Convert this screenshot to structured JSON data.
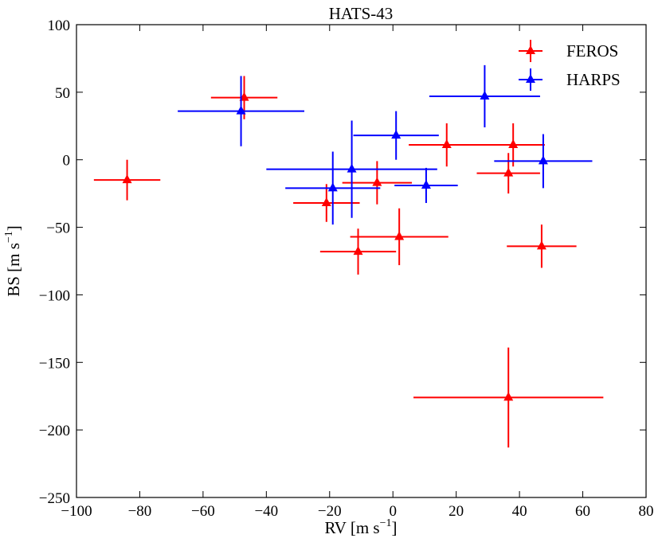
{
  "chart_data": {
    "type": "scatter",
    "title": "HATS-43",
    "xlabel_main": "RV [m s",
    "xlabel_sup": "−1",
    "xlabel_close": "]",
    "ylabel_main": "BS [m s",
    "ylabel_sup": "−1",
    "ylabel_close": "]",
    "xlim": [
      -100,
      80
    ],
    "ylim": [
      -250,
      100
    ],
    "xticks": [
      -100,
      -80,
      -60,
      -40,
      -20,
      0,
      20,
      40,
      60,
      80
    ],
    "yticks": [
      -250,
      -200,
      -150,
      -100,
      -50,
      0,
      50,
      100
    ],
    "xtick_labels": [
      "−100",
      "−80",
      "−60",
      "−40",
      "−20",
      "0",
      "20",
      "40",
      "60",
      "80"
    ],
    "ytick_labels": [
      "−250",
      "−200",
      "−150",
      "−100",
      "−50",
      "0",
      "50",
      "100"
    ],
    "legend_position": "top-right",
    "series": [
      {
        "name": "FEROS",
        "color": "#ff0000",
        "points": [
          {
            "x": -84,
            "y": -15,
            "xerr": 10.5,
            "yerr": 15
          },
          {
            "x": -47,
            "y": 46,
            "xerr": 10.5,
            "yerr": 16
          },
          {
            "x": -21,
            "y": -32,
            "xerr": 10.5,
            "yerr": 14
          },
          {
            "x": -11,
            "y": -68,
            "xerr": 12,
            "yerr": 17
          },
          {
            "x": -5,
            "y": -17,
            "xerr": 11,
            "yerr": 16
          },
          {
            "x": 2,
            "y": -57,
            "xerr": 15.5,
            "yerr": 21
          },
          {
            "x": 17,
            "y": 11,
            "xerr": 12,
            "yerr": 16
          },
          {
            "x": 36.5,
            "y": -10,
            "xerr": 10,
            "yerr": 15
          },
          {
            "x": 38,
            "y": 11,
            "xerr": 10,
            "yerr": 16
          },
          {
            "x": 47,
            "y": -64,
            "xerr": 11,
            "yerr": 16
          },
          {
            "x": 36.5,
            "y": -176,
            "xerr": 30,
            "yerr": 37
          }
        ]
      },
      {
        "name": "HARPS",
        "color": "#0000ff",
        "points": [
          {
            "x": -48,
            "y": 36,
            "xerr": 20,
            "yerr": 26
          },
          {
            "x": -19,
            "y": -21,
            "xerr": 15,
            "yerr": 27
          },
          {
            "x": -13,
            "y": -7,
            "xerr": 27,
            "yerr": 36
          },
          {
            "x": 1,
            "y": 18,
            "xerr": 13.5,
            "yerr": 18
          },
          {
            "x": 10.5,
            "y": -19,
            "xerr": 10,
            "yerr": 13
          },
          {
            "x": 29,
            "y": 47,
            "xerr": 17.5,
            "yerr": 23
          },
          {
            "x": 47.5,
            "y": -1,
            "xerr": 15.5,
            "yerr": 20
          }
        ]
      }
    ]
  }
}
